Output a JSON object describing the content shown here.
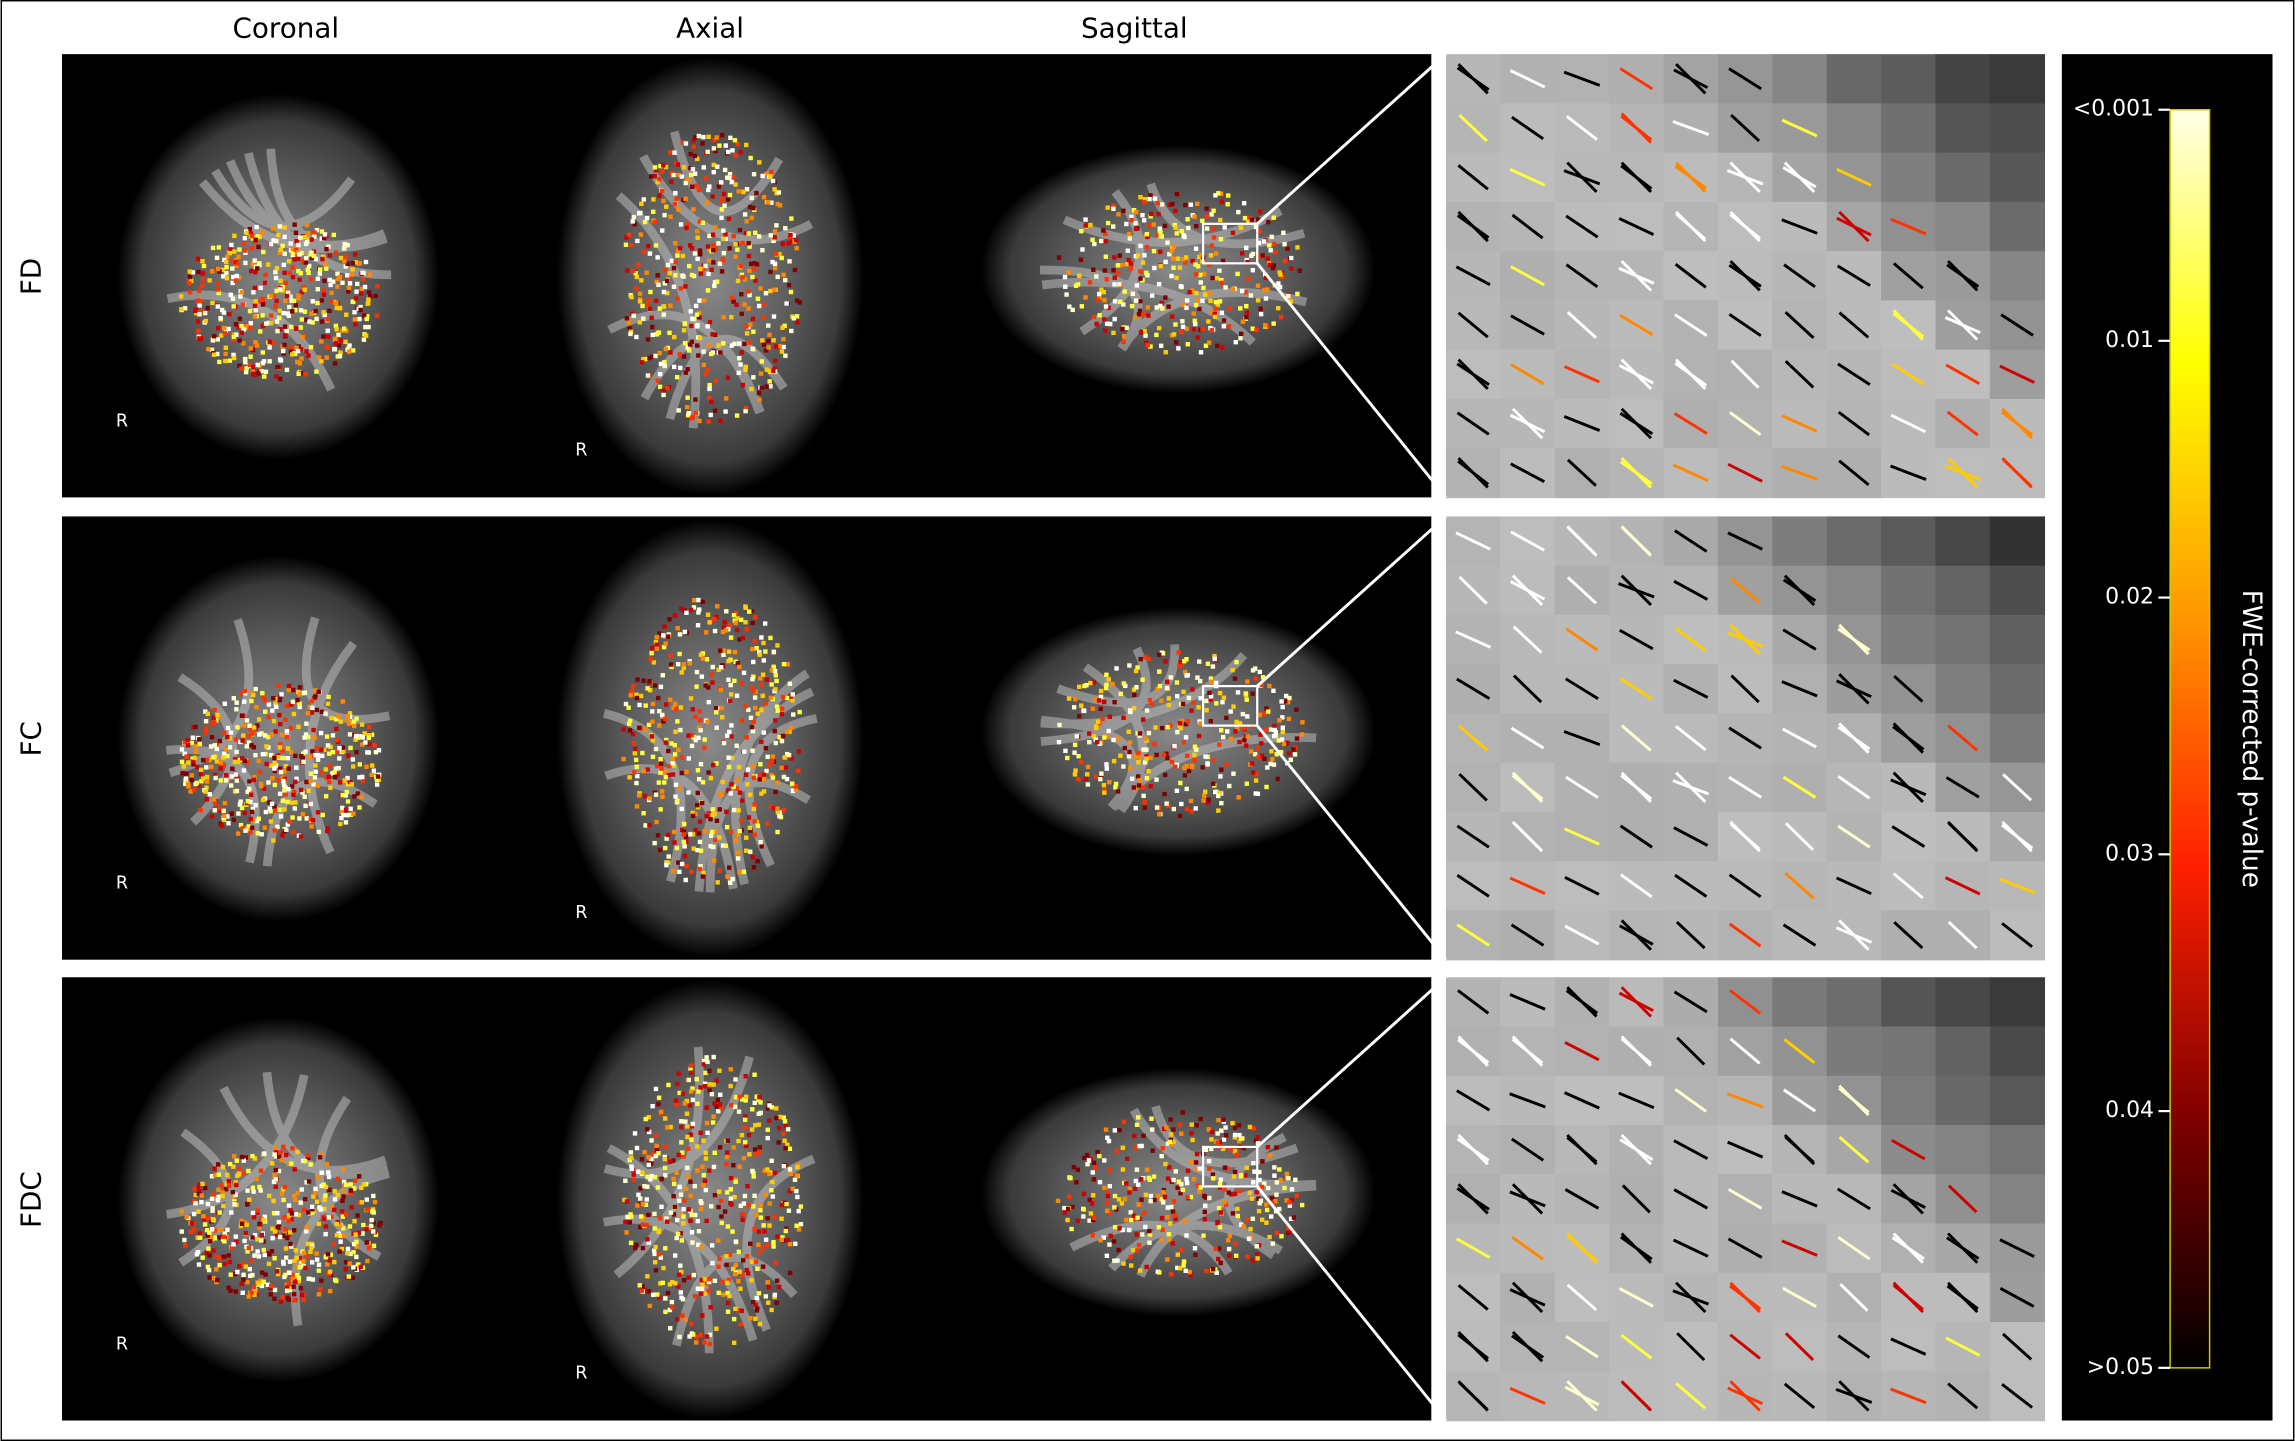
{
  "columns": [
    "Coronal",
    "Axial",
    "Sagittal"
  ],
  "rows": [
    "FD",
    "FC",
    "FDC"
  ],
  "orientation_label": "R",
  "colorbar": {
    "label": "FWE-corrected p-value",
    "ylim": [
      0.001,
      0.05
    ],
    "yticks": [
      {
        "value": 0.001,
        "label": "<0.001"
      },
      0.01,
      0.02,
      0.03,
      0.04,
      {
        "value": 0.05,
        "label": ">0.05"
      }
    ]
  }
}
